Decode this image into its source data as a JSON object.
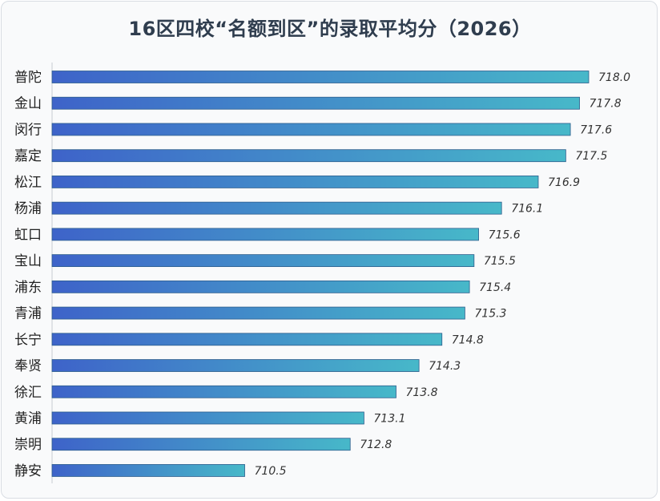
{
  "chart_data": {
    "type": "bar",
    "orientation": "horizontal",
    "title": "16区四校“名额到区”的录取平均分（2026）",
    "categories": [
      "普陀",
      "金山",
      "闵行",
      "嘉定",
      "松江",
      "杨浦",
      "虹口",
      "宝山",
      "浦东",
      "青浦",
      "长宁",
      "奉贤",
      "徐汇",
      "黄浦",
      "崇明",
      "静安"
    ],
    "values": [
      718.0,
      717.8,
      717.6,
      717.5,
      716.9,
      716.1,
      715.6,
      715.5,
      715.4,
      715.3,
      714.8,
      714.3,
      713.8,
      713.1,
      712.8,
      710.5
    ],
    "value_labels": [
      "718.0",
      "717.8",
      "717.6",
      "717.5",
      "716.9",
      "716.1",
      "715.6",
      "715.5",
      "715.4",
      "715.3",
      "714.8",
      "714.3",
      "713.8",
      "713.1",
      "712.8",
      "710.5"
    ],
    "xlim": [
      706.3,
      718.0
    ],
    "grid": false,
    "legend": "none",
    "colors": {
      "bar_start": "#3e63c9",
      "bar_end": "#47b8c9",
      "bar_stroke": "#2c5d8c",
      "axis": "#c8ccd2"
    }
  }
}
